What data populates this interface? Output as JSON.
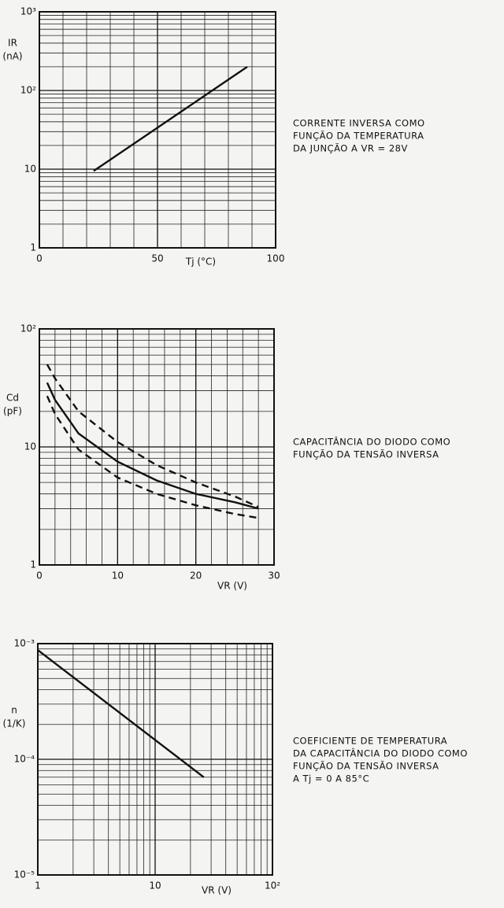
{
  "chart_data": [
    {
      "type": "line",
      "xlim": [
        0,
        100
      ],
      "ylim": [
        1,
        1000
      ],
      "ylog": true,
      "xticks": [
        0,
        50,
        100
      ],
      "yticks": [
        1,
        10,
        {
          "value": 100,
          "label": "10²"
        },
        {
          "value": 1000,
          "label": "10³"
        }
      ],
      "xlabel": "Tj (°C)",
      "ylabel": [
        "IR",
        "(nA)"
      ],
      "annotation": [
        "CORRENTE INVERSA COMO",
        "FUNÇÃO DA TEMPERATURA",
        "DA JUNÇÃO A VR = 28V"
      ],
      "x": [
        23,
        88
      ],
      "series": [
        {
          "color": "#111111",
          "dash": false,
          "values": [
            9.5,
            200
          ]
        }
      ]
    },
    {
      "type": "line",
      "xlim": [
        0,
        30
      ],
      "ylim": [
        1,
        100
      ],
      "ylog": true,
      "xticks": [
        0,
        10,
        20,
        30
      ],
      "yticks": [
        1,
        10,
        {
          "value": 100,
          "label": "10²"
        }
      ],
      "xlabel": "VR (V)",
      "ylabel": [
        "Cd",
        "(pF)"
      ],
      "annotation": [
        "CAPACITÂNCIA DO DIODO COMO",
        "FUNÇÃO DA TENSÃO INVERSA"
      ],
      "x": [
        1,
        2,
        5,
        10,
        15,
        20,
        25,
        28
      ],
      "series": [
        {
          "color": "#111111",
          "dash": false,
          "values": [
            35,
            25,
            13,
            7.5,
            5.2,
            4,
            3.4,
            3
          ]
        },
        {
          "color": "#111111",
          "dash": true,
          "values": [
            50,
            38,
            20,
            11,
            7,
            5,
            3.8,
            3.1
          ]
        },
        {
          "color": "#111111",
          "dash": true,
          "values": [
            27,
            19,
            9.5,
            5.5,
            4,
            3.2,
            2.7,
            2.5
          ]
        }
      ]
    },
    {
      "type": "line",
      "xlim": [
        1,
        100
      ],
      "ylim": [
        1e-05,
        0.001
      ],
      "xlog": true,
      "ylog": true,
      "xticks": [
        1,
        10,
        {
          "value": 100,
          "label": "10²"
        }
      ],
      "yticks": [
        {
          "value": 1e-05,
          "label": "10⁻⁵"
        },
        {
          "value": 0.0001,
          "label": "10⁻⁴"
        },
        {
          "value": 0.001,
          "label": "10⁻³"
        }
      ],
      "xlabel": "VR (V)",
      "ylabel": [
        "n",
        "(1/K)"
      ],
      "annotation": [
        "COEFICIENTE DE TEMPERATURA",
        "DA CAPACITÂNCIA DO DIODO COMO",
        "FUNÇÃO DA TENSÃO INVERSA",
        "A Tj = 0 A 85°C"
      ],
      "x": [
        1,
        26
      ],
      "series": [
        {
          "color": "#111111",
          "dash": false,
          "values": [
            0.00088,
            7e-05
          ]
        }
      ]
    }
  ]
}
